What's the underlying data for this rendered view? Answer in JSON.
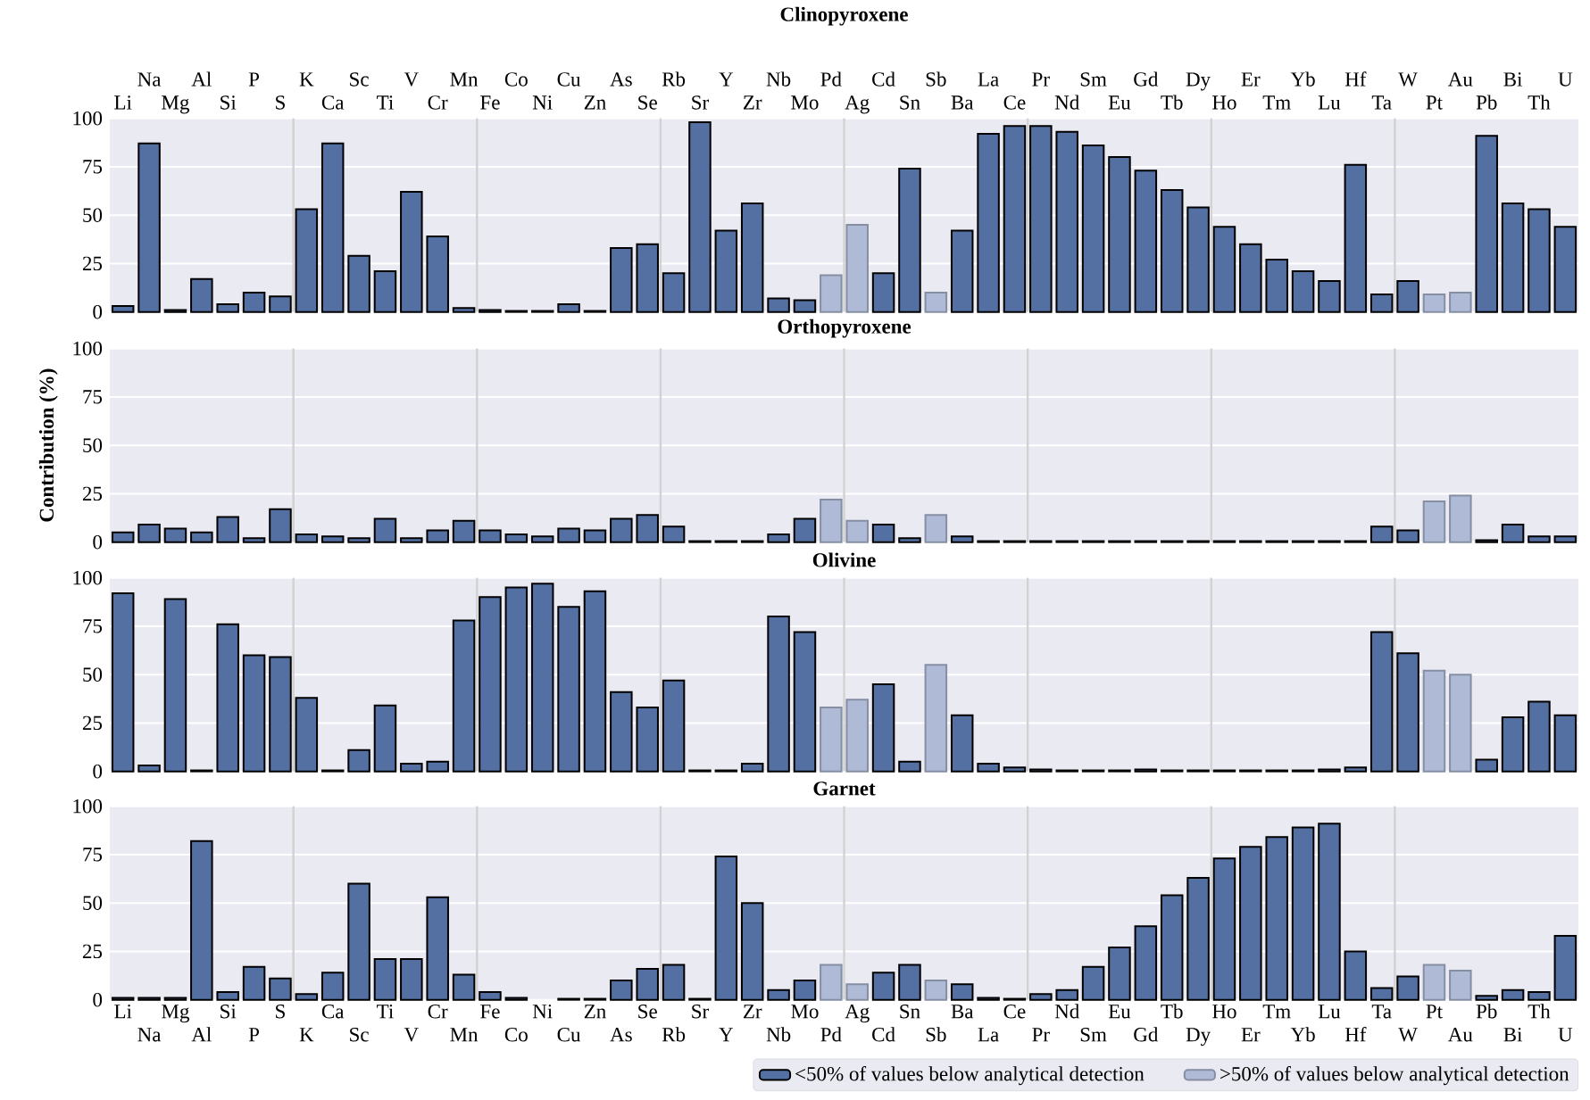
{
  "chart_data": [
    {
      "type": "bar",
      "title": "Clinopyroxene",
      "categories": [
        "Li",
        "Na",
        "Mg",
        "Al",
        "Si",
        "P",
        "S",
        "K",
        "Ca",
        "Sc",
        "Ti",
        "V",
        "Cr",
        "Mn",
        "Fe",
        "Co",
        "Ni",
        "Cu",
        "Zn",
        "As",
        "Se",
        "Rb",
        "Sr",
        "Y",
        "Zr",
        "Nb",
        "Mo",
        "Pd",
        "Ag",
        "Cd",
        "Sn",
        "Sb",
        "Ba",
        "La",
        "Ce",
        "Pr",
        "Nd",
        "Sm",
        "Eu",
        "Gd",
        "Tb",
        "Dy",
        "Ho",
        "Er",
        "Tm",
        "Yb",
        "Lu",
        "Hf",
        "Ta",
        "W",
        "Pt",
        "Au",
        "Pb",
        "Bi",
        "Th",
        "U"
      ],
      "series": [
        {
          "color": "#5470a3",
          "values": [
            3,
            87,
            1,
            17,
            4,
            10,
            8,
            53,
            87,
            29,
            21,
            62,
            39,
            2,
            1,
            0.5,
            0.5,
            4,
            0.5,
            33,
            35,
            20,
            98,
            42,
            56,
            7,
            6,
            null,
            null,
            20,
            74,
            null,
            42,
            92,
            96,
            96,
            93,
            86,
            80,
            73,
            63,
            54,
            44,
            35,
            27,
            21,
            16,
            76,
            9,
            16,
            null,
            null,
            91,
            56,
            53,
            44
          ]
        },
        {
          "color": "#afbbd6",
          "values": [
            null,
            null,
            null,
            null,
            null,
            null,
            null,
            null,
            null,
            null,
            null,
            null,
            null,
            null,
            null,
            null,
            null,
            null,
            null,
            null,
            null,
            null,
            null,
            null,
            null,
            null,
            null,
            19,
            45,
            null,
            null,
            10,
            null,
            null,
            null,
            null,
            null,
            null,
            null,
            null,
            null,
            null,
            null,
            null,
            null,
            null,
            null,
            null,
            null,
            null,
            9,
            10,
            null,
            null,
            null,
            null
          ]
        }
      ],
      "ylim": [
        0,
        100
      ],
      "yticks": [
        0,
        25,
        50,
        75,
        100
      ],
      "grid": "y"
    },
    {
      "type": "bar",
      "title": "Orthopyroxene",
      "ylabel": "Contribution (%)",
      "categories": [
        null,
        null,
        null,
        null,
        null,
        null,
        null,
        null,
        null,
        null,
        null,
        null,
        null,
        null,
        null,
        null,
        null,
        null,
        null,
        null,
        null,
        null,
        null,
        null,
        null,
        null,
        null,
        null,
        null,
        null,
        null,
        null,
        null,
        null,
        null,
        null,
        null,
        null,
        null,
        null,
        null,
        null,
        null,
        null,
        null,
        null,
        null,
        null,
        null,
        null,
        null,
        null,
        null,
        null,
        null,
        null
      ],
      "series": [
        {
          "color": "#5470a3",
          "values": [
            5,
            9,
            7,
            5,
            13,
            2,
            17,
            4,
            3,
            2,
            12,
            2,
            6,
            11,
            6,
            4,
            3,
            7,
            6,
            12,
            14,
            8,
            0.5,
            0.5,
            0.5,
            4,
            12,
            null,
            null,
            9,
            2,
            null,
            3,
            0.5,
            0.5,
            0.5,
            0.5,
            0.5,
            0.5,
            0.5,
            0.5,
            0.5,
            0.5,
            0.5,
            0.5,
            0.5,
            0.5,
            0.5,
            8,
            6,
            null,
            null,
            1,
            9,
            3,
            3
          ]
        },
        {
          "color": "#afbbd6",
          "values": [
            null,
            null,
            null,
            null,
            null,
            null,
            null,
            null,
            null,
            null,
            null,
            null,
            null,
            null,
            null,
            null,
            null,
            null,
            null,
            null,
            null,
            null,
            null,
            null,
            null,
            null,
            null,
            22,
            11,
            null,
            null,
            14,
            null,
            null,
            null,
            null,
            null,
            null,
            null,
            null,
            null,
            null,
            null,
            null,
            null,
            null,
            null,
            null,
            null,
            null,
            21,
            24,
            null,
            null,
            null,
            null
          ]
        }
      ],
      "ylim": [
        0,
        100
      ],
      "yticks": [
        0,
        25,
        50,
        75,
        100
      ],
      "grid": "y",
      "tick_labels": "y"
    },
    {
      "type": "bar",
      "title": "Olivine",
      "categories": [
        null,
        null,
        null,
        null,
        null,
        null,
        null,
        null,
        null,
        null,
        null,
        null,
        null,
        null,
        null,
        null,
        null,
        null,
        null,
        null,
        null,
        null,
        null,
        null,
        null,
        null,
        null,
        null,
        null,
        null,
        null,
        null,
        null,
        null,
        null,
        null,
        null,
        null,
        null,
        null,
        null,
        null,
        null,
        null,
        null,
        null,
        null,
        null,
        null,
        null,
        null,
        null,
        null,
        null,
        null,
        null
      ],
      "series": [
        {
          "color": "#5470a3",
          "values": [
            92,
            3,
            89,
            0.5,
            76,
            60,
            59,
            38,
            0.5,
            11,
            34,
            4,
            5,
            78,
            90,
            95,
            97,
            85,
            93,
            41,
            33,
            47,
            0.5,
            0.5,
            4,
            80,
            72,
            null,
            null,
            45,
            5,
            null,
            29,
            4,
            2,
            1,
            0.5,
            0.5,
            0.5,
            1,
            0.5,
            0.5,
            0.5,
            0.5,
            0.5,
            0.5,
            1,
            2,
            72,
            61,
            null,
            null,
            6,
            28,
            36,
            29
          ]
        },
        {
          "color": "#afbbd6",
          "values": [
            null,
            null,
            null,
            null,
            null,
            null,
            null,
            null,
            null,
            null,
            null,
            null,
            null,
            null,
            null,
            null,
            null,
            null,
            null,
            null,
            null,
            null,
            null,
            null,
            null,
            null,
            null,
            33,
            37,
            null,
            null,
            55,
            null,
            null,
            null,
            null,
            null,
            null,
            null,
            null,
            null,
            null,
            null,
            null,
            null,
            null,
            null,
            null,
            null,
            null,
            52,
            50,
            null,
            null,
            null,
            null
          ]
        }
      ],
      "ylim": [
        0,
        100
      ],
      "yticks": [
        0,
        25,
        50,
        75,
        100
      ],
      "grid": "y",
      "tick_labels": "y"
    },
    {
      "type": "bar",
      "title": "Garnet",
      "categories": [
        "Li",
        "Na",
        "Mg",
        "Al",
        "Si",
        "P",
        "S",
        "K",
        "Ca",
        "Sc",
        "Ti",
        "V",
        "Cr",
        "Mn",
        "Fe",
        "Co",
        "Ni",
        "Cu",
        "Zn",
        "As",
        "Se",
        "Rb",
        "Sr",
        "Y",
        "Zr",
        "Nb",
        "Mo",
        "Pd",
        "Ag",
        "Cd",
        "Sn",
        "Sb",
        "Ba",
        "La",
        "Ce",
        "Pr",
        "Nd",
        "Sm",
        "Eu",
        "Gd",
        "Tb",
        "Dy",
        "Ho",
        "Er",
        "Tm",
        "Yb",
        "Lu",
        "Hf",
        "Ta",
        "W",
        "Pt",
        "Au",
        "Pb",
        "Bi",
        "Th",
        "U"
      ],
      "series": [
        {
          "name": "<50% of values below analytical detection",
          "color": "#5470a3",
          "values": [
            1,
            1,
            1,
            82,
            4,
            17,
            11,
            3,
            14,
            60,
            21,
            21,
            53,
            13,
            4,
            1,
            null,
            0.5,
            0.5,
            10,
            16,
            18,
            0.5,
            74,
            50,
            5,
            10,
            null,
            null,
            14,
            18,
            null,
            8,
            1,
            0.5,
            3,
            5,
            17,
            27,
            38,
            54,
            63,
            73,
            79,
            84,
            89,
            91,
            25,
            6,
            12,
            null,
            null,
            2,
            5,
            4,
            33
          ]
        },
        {
          "name": ">50% of values below analytical detection",
          "color": "#afbbd6",
          "values": [
            null,
            null,
            null,
            null,
            null,
            null,
            null,
            null,
            null,
            null,
            null,
            null,
            null,
            null,
            null,
            null,
            null,
            null,
            null,
            null,
            null,
            null,
            null,
            null,
            null,
            null,
            null,
            18,
            8,
            null,
            null,
            10,
            null,
            null,
            null,
            null,
            null,
            null,
            null,
            null,
            null,
            null,
            null,
            null,
            null,
            null,
            null,
            null,
            null,
            null,
            18,
            15,
            null,
            null,
            null,
            null
          ]
        }
      ],
      "ylim": [
        0,
        100
      ],
      "yticks": [
        0,
        25,
        50,
        75,
        100
      ],
      "grid": "y",
      "legend": "bottom right"
    }
  ]
}
